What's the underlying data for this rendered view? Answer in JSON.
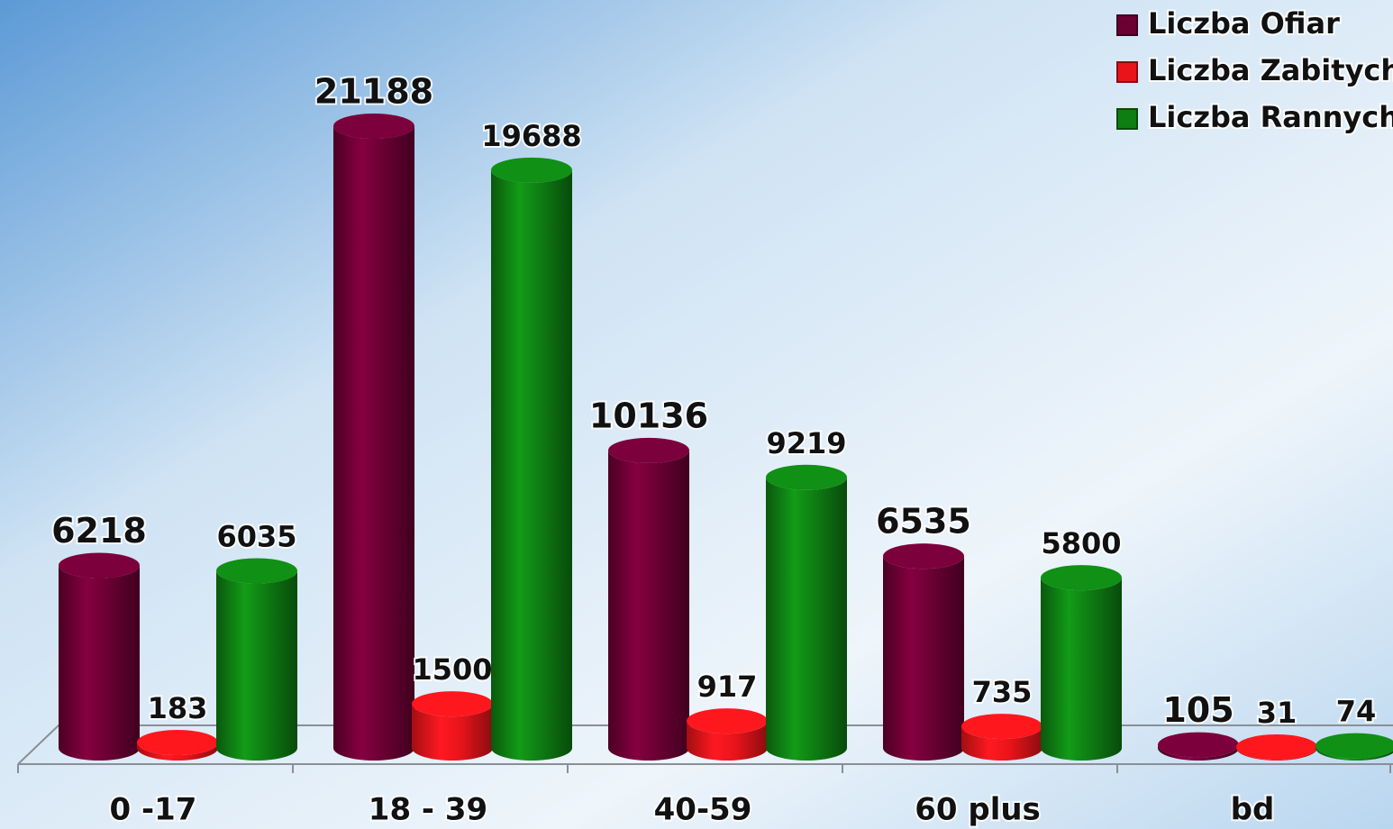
{
  "chart_data": {
    "type": "bar",
    "categories": [
      "0 -17",
      "18 - 39",
      "40-59",
      "60 plus",
      "bd"
    ],
    "series": [
      {
        "name": "Liczba Ofiar",
        "color": "#6b0033",
        "values": [
          6218,
          21188,
          10136,
          6535,
          105
        ]
      },
      {
        "name": "Liczba Zabitych",
        "color": "#e8141a",
        "values": [
          183,
          1500,
          917,
          735,
          31
        ]
      },
      {
        "name": "Liczba Rannych",
        "color": "#0e7d12",
        "values": [
          6035,
          19688,
          9219,
          5800,
          74
        ]
      }
    ],
    "legend": "top-right"
  }
}
